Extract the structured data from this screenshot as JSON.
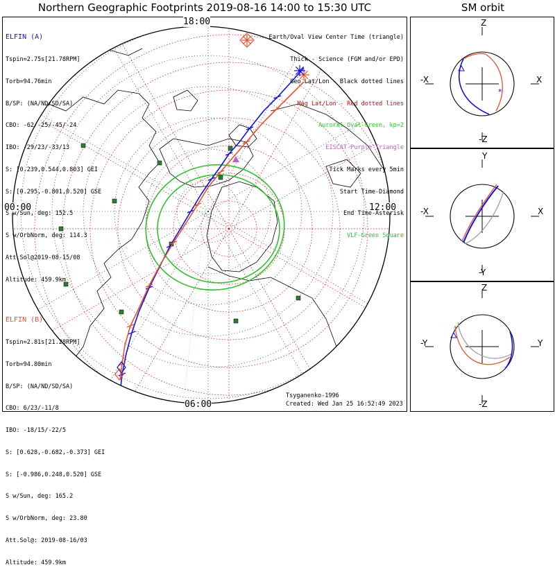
{
  "title": "Northern Geographic Footprints 2019-08-16 14:00 to 15:30 UTC",
  "sm_title": "SM orbit",
  "elfin_a": {
    "name": "ELFIN (A)",
    "color": "#1010e0",
    "lines": [
      "Tspin=2.75s[21.78RPM]",
      "Torb=94.76min",
      "B/SP: (NA/ND/SD/SA)",
      "CBO: -62/-25/-45/-24",
      "IBO: -29/23/-33/13",
      "S: [0.239,0.544,0.803] GEI",
      "S: [0.295,-0.801,0.520] GSE",
      "S w/Sun, deg: 152.5",
      "S w/OrbNorm, deg: 114.3",
      "Att.Sol@2019-08-15/08",
      "Altitude: 459.9km"
    ]
  },
  "elfin_b": {
    "name": "ELFIN (B)",
    "color": "#e85030",
    "lines": [
      "Tspin=2.81s[21.28RPM]",
      "Torb=94.80min",
      "B/SP: (NA/ND/SD/SA)",
      "CBO: 6/23/-11/8",
      "IBO: -18/15/-22/5",
      "S: [0.628,-0.682,-0.373] GEI",
      "S: [-0.986,0.248,0.520] GSE",
      "S w/Sun, deg: 165.2",
      "S w/OrbNorm, deg: 23.80",
      "Att.Sol@: 2019-08-16/03",
      "Altitude: 459.9km"
    ]
  },
  "legend": [
    {
      "text": "Earth/Oval View Center Time (triangle)",
      "color": "#000000"
    },
    {
      "text": "Thick - Science (FGM and/or EPD)",
      "color": "#000000"
    },
    {
      "text": "Geo Lat/Lon - Black dotted lines",
      "color": "#000000"
    },
    {
      "text": "Mag Lat/Lon - Red dotted lines",
      "color": "#e00000"
    },
    {
      "text": "Auroral Oval-Green, kp=2",
      "color": "#30c030"
    },
    {
      "text": "EISCAT-Purple Triangle",
      "color": "#c060c0"
    },
    {
      "text": "Tick Marks every 5min",
      "color": "#000000"
    },
    {
      "text": "Start Time-Diamond",
      "color": "#000000"
    },
    {
      "text": "End Time-Asterisk",
      "color": "#000000"
    },
    {
      "text": "VLF-Green Square",
      "color": "#30c030"
    }
  ],
  "local_times": {
    "top": "18:00",
    "left": "00:00",
    "right": "12:00",
    "bottom": "06:00"
  },
  "footer": {
    "model": "Tsyganenko-1996",
    "created": "Created: Wed Jan 25 16:52:49 2023"
  },
  "sm_panels": [
    {
      "top": "Z",
      "bottom": "-Z",
      "left": "-X",
      "right": "X"
    },
    {
      "top": "Y",
      "bottom": "-Y",
      "left": "-X",
      "right": "X"
    },
    {
      "top": "Z",
      "bottom": "-Z",
      "left": "-Y",
      "right": "Y"
    }
  ],
  "colors": {
    "oval": "#30c030",
    "maggrid": "#e00000",
    "geogrid": "#000000",
    "vlf": "#2e7d32",
    "eiscat": "#c060c0",
    "sm_gray": "#a0a0a0"
  },
  "chart_data": {
    "type": "scatter",
    "projection": "north-polar geographic",
    "title": "Northern Geographic Footprints 2019-08-16 14:00 to 15:30 UTC",
    "time_range": [
      "2019-08-16 14:00",
      "2019-08-16 15:30"
    ],
    "tick_interval_min": 5,
    "series": [
      {
        "name": "ELFIN (A)",
        "color": "#1010e0"
      },
      {
        "name": "ELFIN (B)",
        "color": "#e85030"
      }
    ],
    "auroral_oval_kp": 2
  }
}
